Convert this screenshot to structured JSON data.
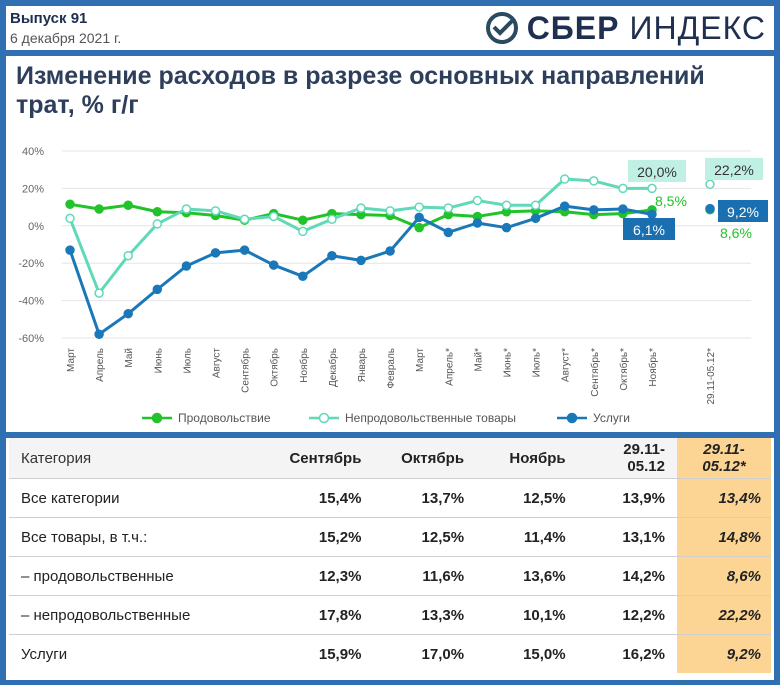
{
  "header": {
    "issue": "Выпуск 91",
    "date": "6 декабря 2021 г.",
    "logo_brand": "СБЕР",
    "logo_product": "ИНДЕКС"
  },
  "chart_data": {
    "type": "line",
    "title": "Изменение расходов в разрезе основных направлений трат, % г/г",
    "ylim": [
      -60,
      40
    ],
    "yticks": [
      "40%",
      "20%",
      "0%",
      "-20%",
      "-40%",
      "-60%"
    ],
    "categories": [
      "Март",
      "Апрель",
      "Май",
      "Июнь",
      "Июль",
      "Август",
      "Сентябрь",
      "Октябрь",
      "Ноябрь",
      "Декабрь",
      "Январь",
      "Февраль",
      "Март",
      "Апрель*",
      "Май*",
      "Июнь*",
      "Июль*",
      "Август*",
      "Сентябрь*",
      "Октябрь*",
      "Ноябрь*"
    ],
    "extra_category": "29.11-05.12*",
    "grid": true,
    "legend_position": "bottom",
    "series": [
      {
        "name": "Продовольствие",
        "color": "#22c22a",
        "values": [
          11.5,
          9,
          11,
          7.5,
          7,
          5.5,
          3,
          6.5,
          3,
          6.5,
          6,
          5.5,
          -1,
          6,
          5,
          7.5,
          8,
          7.5,
          6,
          6.5,
          8.5
        ],
        "extra": 8.6
      },
      {
        "name": "Непродовольственные товары",
        "color": "#5fd9b8",
        "values": [
          4,
          -36,
          -16,
          1,
          9,
          8,
          3.5,
          5,
          -3,
          3.5,
          9.5,
          8,
          10,
          9.5,
          13.5,
          11,
          11,
          25,
          24,
          20,
          20
        ],
        "extra": 22.2
      },
      {
        "name": "Услуги",
        "color": "#1a78b8",
        "values": [
          -13,
          -58,
          -47,
          -34,
          -21.5,
          -14.5,
          -13,
          -21,
          -27,
          -16,
          -18.5,
          -13.5,
          4.5,
          -3.5,
          1.5,
          -1,
          4,
          10.5,
          8.5,
          9,
          6.1
        ],
        "extra": 9.2
      }
    ],
    "labels": {
      "nonfood_nov": "20,0%",
      "food_nov": "8,5%",
      "services_nov": "6,1%",
      "nonfood_last": "22,2%",
      "services_last": "9,2%",
      "food_last": "8,6%"
    }
  },
  "table": {
    "headers": [
      "Категория",
      "Сентябрь",
      "Октябрь",
      "Ноябрь",
      "29.11-\n05.12",
      "29.11-\n05.12*"
    ],
    "rows": [
      [
        "Все категории",
        "15,4%",
        "13,7%",
        "12,5%",
        "13,9%",
        "13,4%"
      ],
      [
        "Все товары, в т.ч.:",
        "15,2%",
        "12,5%",
        "11,4%",
        "13,1%",
        "14,8%"
      ],
      [
        "– продовольственные",
        "12,3%",
        "11,6%",
        "13,6%",
        "14,2%",
        "8,6%"
      ],
      [
        "– непродовольственные",
        "17,8%",
        "13,3%",
        "10,1%",
        "12,2%",
        "22,2%"
      ],
      [
        "Услуги",
        "15,9%",
        "17,0%",
        "15,0%",
        "16,2%",
        "9,2%"
      ]
    ]
  }
}
